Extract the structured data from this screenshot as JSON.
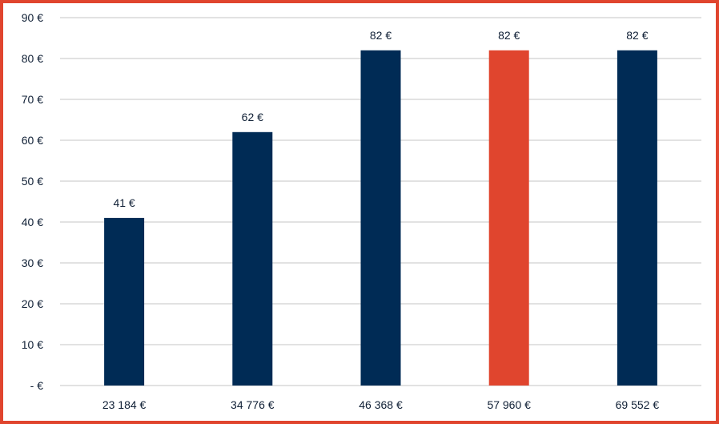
{
  "chart_data": {
    "type": "bar",
    "categories": [
      "23 184 €",
      "34 776 €",
      "46 368 €",
      "57 960 €",
      "69 552 €"
    ],
    "values": [
      41,
      62,
      82,
      82,
      82
    ],
    "data_labels": [
      "41 €",
      "62 €",
      "82 €",
      "82 €",
      "82 €"
    ],
    "ylim": [
      0,
      90
    ],
    "yticks": [
      0,
      10,
      20,
      30,
      40,
      50,
      60,
      70,
      80,
      90
    ],
    "ytick_labels": [
      "-  €",
      "10 €",
      "20 €",
      "30 €",
      "40 €",
      "50 €",
      "60 €",
      "70 €",
      "80 €",
      "90 €"
    ],
    "grid": true,
    "colors": {
      "default": "#002b55",
      "highlight": "#e0452e",
      "gridline": "#d9d9d9",
      "frame": "#e0452e"
    },
    "highlight_index": 3,
    "title": "",
    "xlabel": "",
    "ylabel": ""
  }
}
